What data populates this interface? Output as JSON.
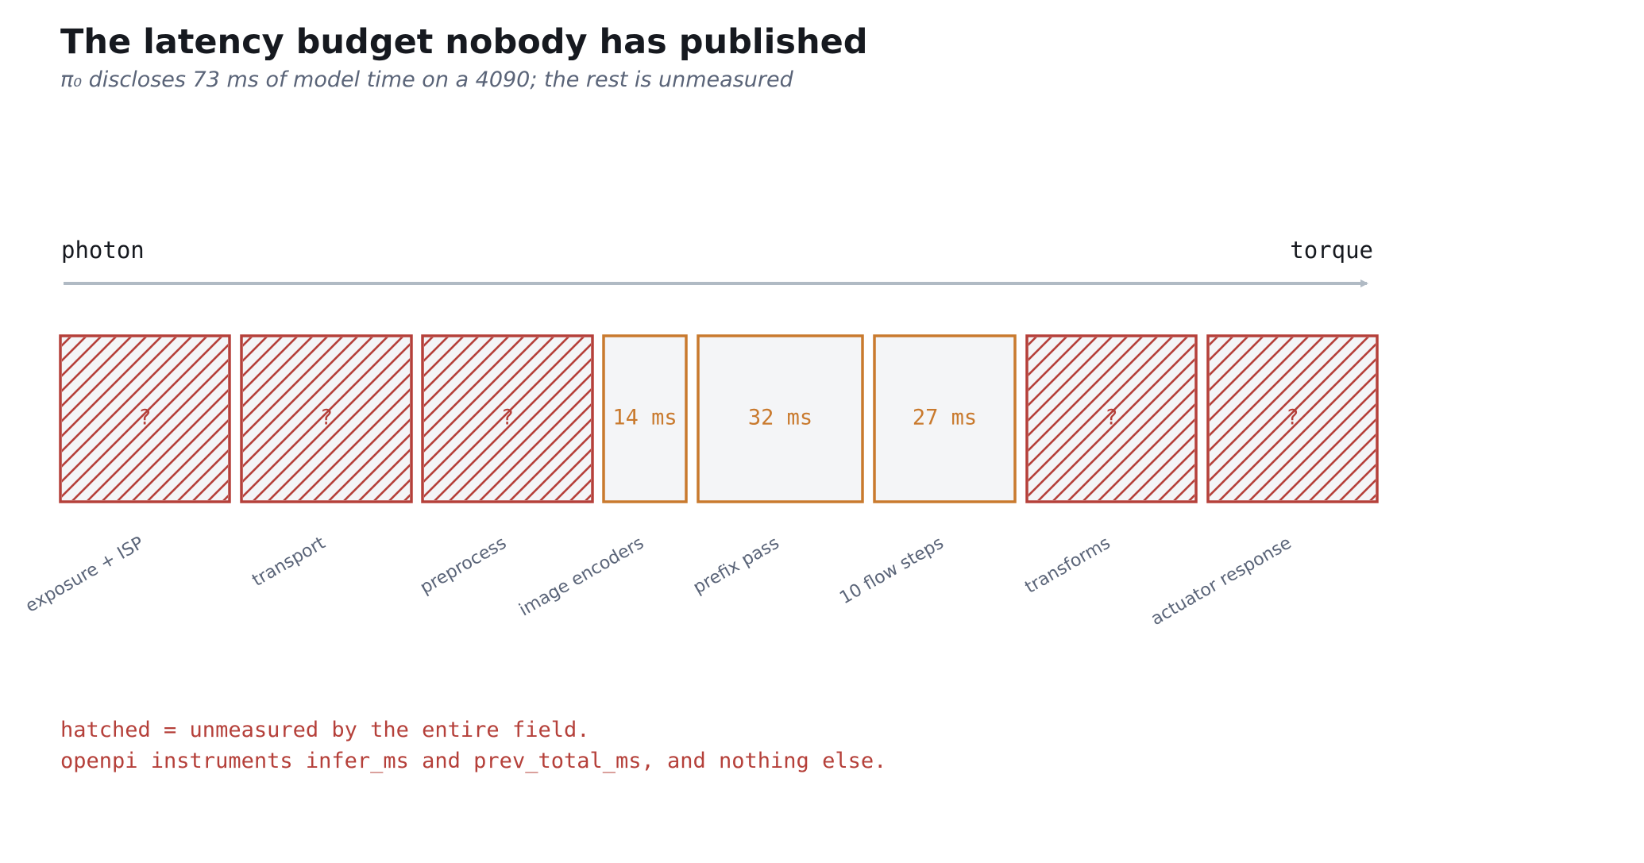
{
  "header": {
    "title": "The latency budget nobody has published",
    "subtitle": "π₀ discloses 73 ms of model time on a 4090; the rest is unmeasured"
  },
  "axis": {
    "start": "photon",
    "end": "torque"
  },
  "stages": [
    {
      "name": "exposure + ISP",
      "value": "?",
      "measured": false
    },
    {
      "name": "transport",
      "value": "?",
      "measured": false
    },
    {
      "name": "preprocess",
      "value": "?",
      "measured": false
    },
    {
      "name": "image encoders",
      "value": "14 ms",
      "measured": true
    },
    {
      "name": "prefix pass",
      "value": "32 ms",
      "measured": true
    },
    {
      "name": "10 flow steps",
      "value": "27 ms",
      "measured": true
    },
    {
      "name": "transforms",
      "value": "?",
      "measured": false
    },
    {
      "name": "actuator response",
      "value": "?",
      "measured": false
    }
  ],
  "footer": [
    "hatched = unmeasured by the entire field.",
    "openpi instruments infer_ms and prev_total_ms, and nothing else."
  ]
}
